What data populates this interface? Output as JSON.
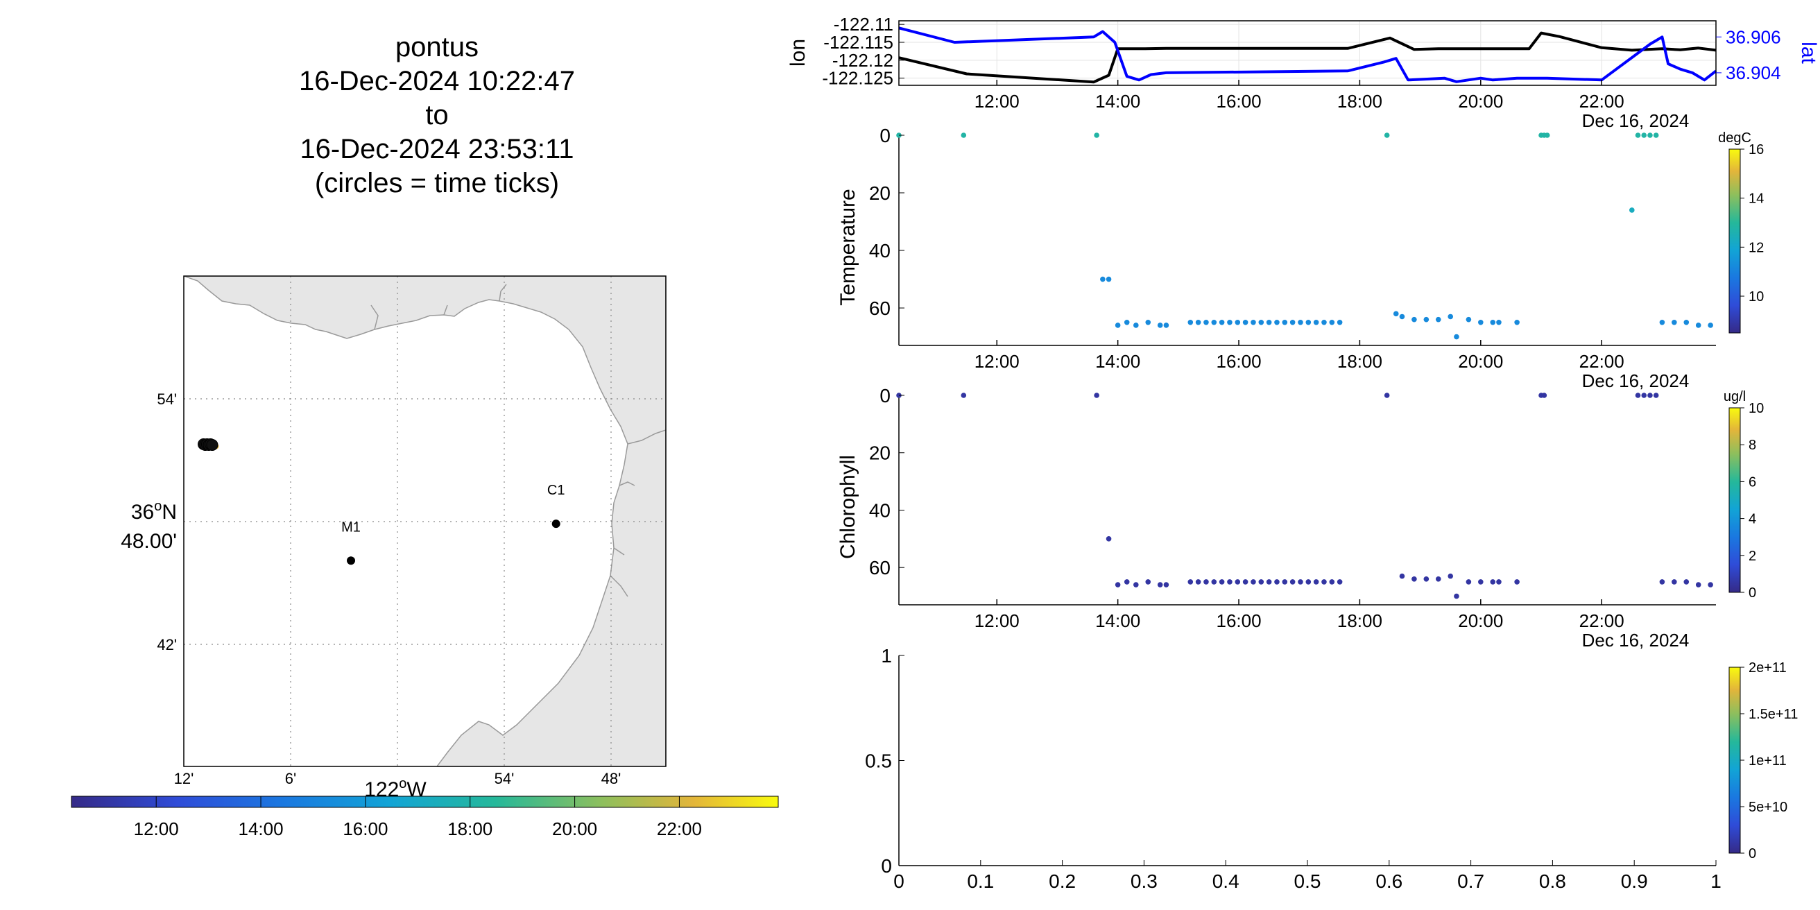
{
  "map": {
    "title_lines": [
      "pontus",
      "16-Dec-2024 10:22:47",
      "to",
      "16-Dec-2024 23:53:11",
      "(circles = time ticks)"
    ],
    "lat_ticks": [
      "54'",
      "42'"
    ],
    "lat_center_label": "36",
    "lat_center_sup": "o",
    "lat_center_hemi": "N",
    "lat_center_min": "48.00'",
    "lon_ticks": [
      "12'",
      "6'",
      "54'",
      "48'"
    ],
    "lon_center_label": "122",
    "lon_center_sup": "o",
    "lon_center_hemi": "W",
    "stations": [
      {
        "name": "C1",
        "lon": -121.901,
        "lat": 36.797
      },
      {
        "name": "M1",
        "lon": -122.029,
        "lat": 36.747
      }
    ],
    "track_position": {
      "lon": -122.121,
      "lat": 36.905
    },
    "colorbar_ticks": [
      "12:00",
      "14:00",
      "16:00",
      "18:00",
      "20:00",
      "22:00"
    ],
    "land_color": "#e6e6e6"
  },
  "chart_data": [
    {
      "type": "line",
      "name": "position",
      "ylabel": "lon",
      "y2label": "lat",
      "y_ticks": [
        "-122.11",
        "-122.115",
        "-122.12",
        "-122.125"
      ],
      "ylim": [
        -122.127,
        -122.109
      ],
      "y2_ticks": [
        "36.906",
        "36.904"
      ],
      "y2lim": [
        36.9033,
        36.9069
      ],
      "x_ticks": [
        "12:00",
        "14:00",
        "16:00",
        "18:00",
        "20:00",
        "22:00"
      ],
      "xlim_hours": [
        10.38,
        23.89
      ],
      "date_label": "Dec 16, 2024",
      "series": [
        {
          "color": "#000000",
          "axis": "left",
          "x": [
            10.38,
            11.5,
            13.6,
            13.85,
            14.0,
            14.4,
            14.8,
            17.0,
            17.8,
            18.5,
            18.9,
            19.3,
            20.2,
            20.8,
            21.0,
            21.3,
            22.0,
            22.5,
            23.0,
            23.3,
            23.6,
            23.89
          ],
          "y": [
            -122.1193,
            -122.1238,
            -122.1261,
            -122.1242,
            -122.1168,
            -122.1168,
            -122.1167,
            -122.1167,
            -122.1167,
            -122.1138,
            -122.117,
            -122.1168,
            -122.1168,
            -122.1168,
            -122.1124,
            -122.1134,
            -122.1165,
            -122.1172,
            -122.1168,
            -122.1171,
            -122.1166,
            -122.1172
          ]
        },
        {
          "color": "#0000ff",
          "axis": "right",
          "x": [
            10.38,
            11.3,
            13.6,
            13.75,
            13.95,
            14.15,
            14.35,
            14.55,
            14.8,
            17.8,
            18.4,
            18.6,
            18.8,
            19.4,
            19.6,
            20.0,
            20.2,
            20.6,
            21.1,
            22.0,
            22.8,
            23.0,
            23.1,
            23.3,
            23.5,
            23.7,
            23.89
          ],
          "y": [
            36.9065,
            36.9057,
            36.906,
            36.9063,
            36.9057,
            36.9038,
            36.9036,
            36.9039,
            36.904,
            36.9041,
            36.9046,
            36.9048,
            36.9036,
            36.9037,
            36.9035,
            36.9037,
            36.9036,
            36.9037,
            36.9037,
            36.9036,
            36.9056,
            36.906,
            36.9045,
            36.9042,
            36.904,
            36.9036,
            36.9041
          ]
        }
      ]
    },
    {
      "type": "scatter",
      "name": "temperature",
      "ylabel": "Temperature",
      "y_ticks": [
        "0",
        "20",
        "40",
        "60"
      ],
      "ylim": [
        73,
        0
      ],
      "x_ticks": [
        "12:00",
        "14:00",
        "16:00",
        "18:00",
        "20:00",
        "22:00"
      ],
      "xlim_hours": [
        10.38,
        23.89
      ],
      "date_label": "Dec 16, 2024",
      "colorbar_label": "degC",
      "colorbar_ticks": [
        "16",
        "14",
        "12",
        "10"
      ],
      "colorbar_range": [
        8.5,
        16
      ],
      "points": [
        {
          "x": 10.38,
          "y": 0,
          "c": 12.8
        },
        {
          "x": 11.45,
          "y": 0,
          "c": 12.8
        },
        {
          "x": 13.65,
          "y": 0,
          "c": 12.8
        },
        {
          "x": 18.45,
          "y": 0,
          "c": 12.8
        },
        {
          "x": 21.0,
          "y": 0,
          "c": 12.8
        },
        {
          "x": 21.05,
          "y": 0,
          "c": 12.8
        },
        {
          "x": 21.1,
          "y": 0,
          "c": 12.8
        },
        {
          "x": 22.6,
          "y": 0,
          "c": 12.8
        },
        {
          "x": 22.7,
          "y": 0,
          "c": 12.8
        },
        {
          "x": 22.8,
          "y": 0,
          "c": 12.8
        },
        {
          "x": 22.9,
          "y": 0,
          "c": 12.8
        },
        {
          "x": 22.5,
          "y": 26,
          "c": 12.3
        },
        {
          "x": 13.75,
          "y": 50,
          "c": 11.2
        },
        {
          "x": 13.85,
          "y": 50,
          "c": 11.2
        },
        {
          "x": 14.0,
          "y": 66,
          "c": 11.2
        },
        {
          "x": 14.15,
          "y": 65,
          "c": 11.2
        },
        {
          "x": 14.3,
          "y": 66,
          "c": 11.2
        },
        {
          "x": 14.5,
          "y": 65,
          "c": 11.2
        },
        {
          "x": 14.7,
          "y": 66,
          "c": 11.2
        },
        {
          "x": 14.8,
          "y": 66,
          "c": 11.2
        },
        {
          "x": 15.2,
          "y": 65,
          "c": 11.2
        },
        {
          "x": 15.33,
          "y": 65,
          "c": 11.2
        },
        {
          "x": 15.46,
          "y": 65,
          "c": 11.2
        },
        {
          "x": 15.59,
          "y": 65,
          "c": 11.2
        },
        {
          "x": 15.72,
          "y": 65,
          "c": 11.2
        },
        {
          "x": 15.85,
          "y": 65,
          "c": 11.2
        },
        {
          "x": 15.98,
          "y": 65,
          "c": 11.2
        },
        {
          "x": 16.11,
          "y": 65,
          "c": 11.2
        },
        {
          "x": 16.24,
          "y": 65,
          "c": 11.2
        },
        {
          "x": 16.37,
          "y": 65,
          "c": 11.2
        },
        {
          "x": 16.5,
          "y": 65,
          "c": 11.2
        },
        {
          "x": 16.63,
          "y": 65,
          "c": 11.2
        },
        {
          "x": 16.76,
          "y": 65,
          "c": 11.2
        },
        {
          "x": 16.89,
          "y": 65,
          "c": 11.2
        },
        {
          "x": 17.02,
          "y": 65,
          "c": 11.2
        },
        {
          "x": 17.15,
          "y": 65,
          "c": 11.2
        },
        {
          "x": 17.28,
          "y": 65,
          "c": 11.2
        },
        {
          "x": 17.41,
          "y": 65,
          "c": 11.2
        },
        {
          "x": 17.54,
          "y": 65,
          "c": 11.2
        },
        {
          "x": 17.67,
          "y": 65,
          "c": 11.2
        },
        {
          "x": 18.6,
          "y": 62,
          "c": 11.2
        },
        {
          "x": 18.7,
          "y": 63,
          "c": 11.2
        },
        {
          "x": 18.9,
          "y": 64,
          "c": 11.2
        },
        {
          "x": 19.1,
          "y": 64,
          "c": 11.2
        },
        {
          "x": 19.3,
          "y": 64,
          "c": 11.2
        },
        {
          "x": 19.5,
          "y": 63,
          "c": 11.2
        },
        {
          "x": 19.6,
          "y": 70,
          "c": 11.2
        },
        {
          "x": 19.8,
          "y": 64,
          "c": 11.2
        },
        {
          "x": 20.0,
          "y": 65,
          "c": 11.2
        },
        {
          "x": 20.2,
          "y": 65,
          "c": 11.2
        },
        {
          "x": 20.3,
          "y": 65,
          "c": 11.2
        },
        {
          "x": 20.6,
          "y": 65,
          "c": 11.2
        },
        {
          "x": 23.0,
          "y": 65,
          "c": 11.2
        },
        {
          "x": 23.2,
          "y": 65,
          "c": 11.2
        },
        {
          "x": 23.4,
          "y": 65,
          "c": 11.2
        },
        {
          "x": 23.6,
          "y": 66,
          "c": 11.2
        },
        {
          "x": 23.8,
          "y": 66,
          "c": 11.2
        }
      ]
    },
    {
      "type": "scatter",
      "name": "chlorophyll",
      "ylabel": "Chlorophyll",
      "y_ticks": [
        "0",
        "20",
        "40",
        "60"
      ],
      "ylim": [
        73,
        0
      ],
      "x_ticks": [
        "12:00",
        "14:00",
        "16:00",
        "18:00",
        "20:00",
        "22:00"
      ],
      "xlim_hours": [
        10.38,
        23.89
      ],
      "date_label": "Dec 16, 2024",
      "colorbar_label": "ug/l",
      "colorbar_ticks": [
        "10",
        "8",
        "6",
        "4",
        "2",
        "0"
      ],
      "colorbar_range": [
        0,
        10
      ],
      "points": [
        {
          "x": 10.38,
          "y": 0,
          "c": 0.5
        },
        {
          "x": 11.45,
          "y": 0,
          "c": 0.5
        },
        {
          "x": 13.65,
          "y": 0,
          "c": 0.5
        },
        {
          "x": 18.45,
          "y": 0,
          "c": 0.5
        },
        {
          "x": 21.0,
          "y": 0,
          "c": 0.5
        },
        {
          "x": 21.05,
          "y": 0,
          "c": 0.5
        },
        {
          "x": 22.6,
          "y": 0,
          "c": 0.5
        },
        {
          "x": 22.7,
          "y": 0,
          "c": 0.5
        },
        {
          "x": 22.8,
          "y": 0,
          "c": 0.5
        },
        {
          "x": 22.9,
          "y": 0,
          "c": 0.5
        },
        {
          "x": 13.85,
          "y": 50,
          "c": 0.5
        },
        {
          "x": 14.0,
          "y": 66,
          "c": 0.5
        },
        {
          "x": 14.15,
          "y": 65,
          "c": 0.5
        },
        {
          "x": 14.3,
          "y": 66,
          "c": 0.5
        },
        {
          "x": 14.5,
          "y": 65,
          "c": 0.5
        },
        {
          "x": 14.7,
          "y": 66,
          "c": 0.5
        },
        {
          "x": 14.8,
          "y": 66,
          "c": 0.5
        },
        {
          "x": 15.2,
          "y": 65,
          "c": 0.5
        },
        {
          "x": 15.33,
          "y": 65,
          "c": 0.5
        },
        {
          "x": 15.46,
          "y": 65,
          "c": 0.5
        },
        {
          "x": 15.59,
          "y": 65,
          "c": 0.5
        },
        {
          "x": 15.72,
          "y": 65,
          "c": 0.5
        },
        {
          "x": 15.85,
          "y": 65,
          "c": 0.5
        },
        {
          "x": 15.98,
          "y": 65,
          "c": 0.5
        },
        {
          "x": 16.11,
          "y": 65,
          "c": 0.5
        },
        {
          "x": 16.24,
          "y": 65,
          "c": 0.5
        },
        {
          "x": 16.37,
          "y": 65,
          "c": 0.5
        },
        {
          "x": 16.5,
          "y": 65,
          "c": 0.5
        },
        {
          "x": 16.63,
          "y": 65,
          "c": 0.5
        },
        {
          "x": 16.76,
          "y": 65,
          "c": 0.5
        },
        {
          "x": 16.89,
          "y": 65,
          "c": 0.5
        },
        {
          "x": 17.02,
          "y": 65,
          "c": 0.5
        },
        {
          "x": 17.15,
          "y": 65,
          "c": 0.5
        },
        {
          "x": 17.28,
          "y": 65,
          "c": 0.5
        },
        {
          "x": 17.41,
          "y": 65,
          "c": 0.5
        },
        {
          "x": 17.54,
          "y": 65,
          "c": 0.5
        },
        {
          "x": 17.67,
          "y": 65,
          "c": 0.5
        },
        {
          "x": 18.7,
          "y": 63,
          "c": 0.5
        },
        {
          "x": 18.9,
          "y": 64,
          "c": 0.5
        },
        {
          "x": 19.1,
          "y": 64,
          "c": 0.5
        },
        {
          "x": 19.3,
          "y": 64,
          "c": 0.5
        },
        {
          "x": 19.5,
          "y": 63,
          "c": 0.5
        },
        {
          "x": 19.6,
          "y": 70,
          "c": 0.5
        },
        {
          "x": 19.8,
          "y": 65,
          "c": 0.5
        },
        {
          "x": 20.0,
          "y": 65,
          "c": 0.5
        },
        {
          "x": 20.2,
          "y": 65,
          "c": 0.5
        },
        {
          "x": 20.3,
          "y": 65,
          "c": 0.5
        },
        {
          "x": 20.6,
          "y": 65,
          "c": 0.5
        },
        {
          "x": 23.0,
          "y": 65,
          "c": 0.5
        },
        {
          "x": 23.2,
          "y": 65,
          "c": 0.5
        },
        {
          "x": 23.4,
          "y": 65,
          "c": 0.5
        },
        {
          "x": 23.6,
          "y": 66,
          "c": 0.5
        },
        {
          "x": 23.8,
          "y": 66,
          "c": 0.5
        }
      ]
    },
    {
      "type": "scatter",
      "name": "empty-panel",
      "x_ticks": [
        "0",
        "0.1",
        "0.2",
        "0.3",
        "0.4",
        "0.5",
        "0.6",
        "0.7",
        "0.8",
        "0.9",
        "1"
      ],
      "y_ticks": [
        "1",
        "0.5",
        "0"
      ],
      "xlim": [
        0,
        1
      ],
      "ylim": [
        0,
        1
      ],
      "colorbar_ticks": [
        "2e+11",
        "1.5e+11",
        "1e+11",
        "5e+10",
        "0"
      ],
      "points": []
    }
  ],
  "colors": {
    "accent_blue": "#0000ff"
  }
}
